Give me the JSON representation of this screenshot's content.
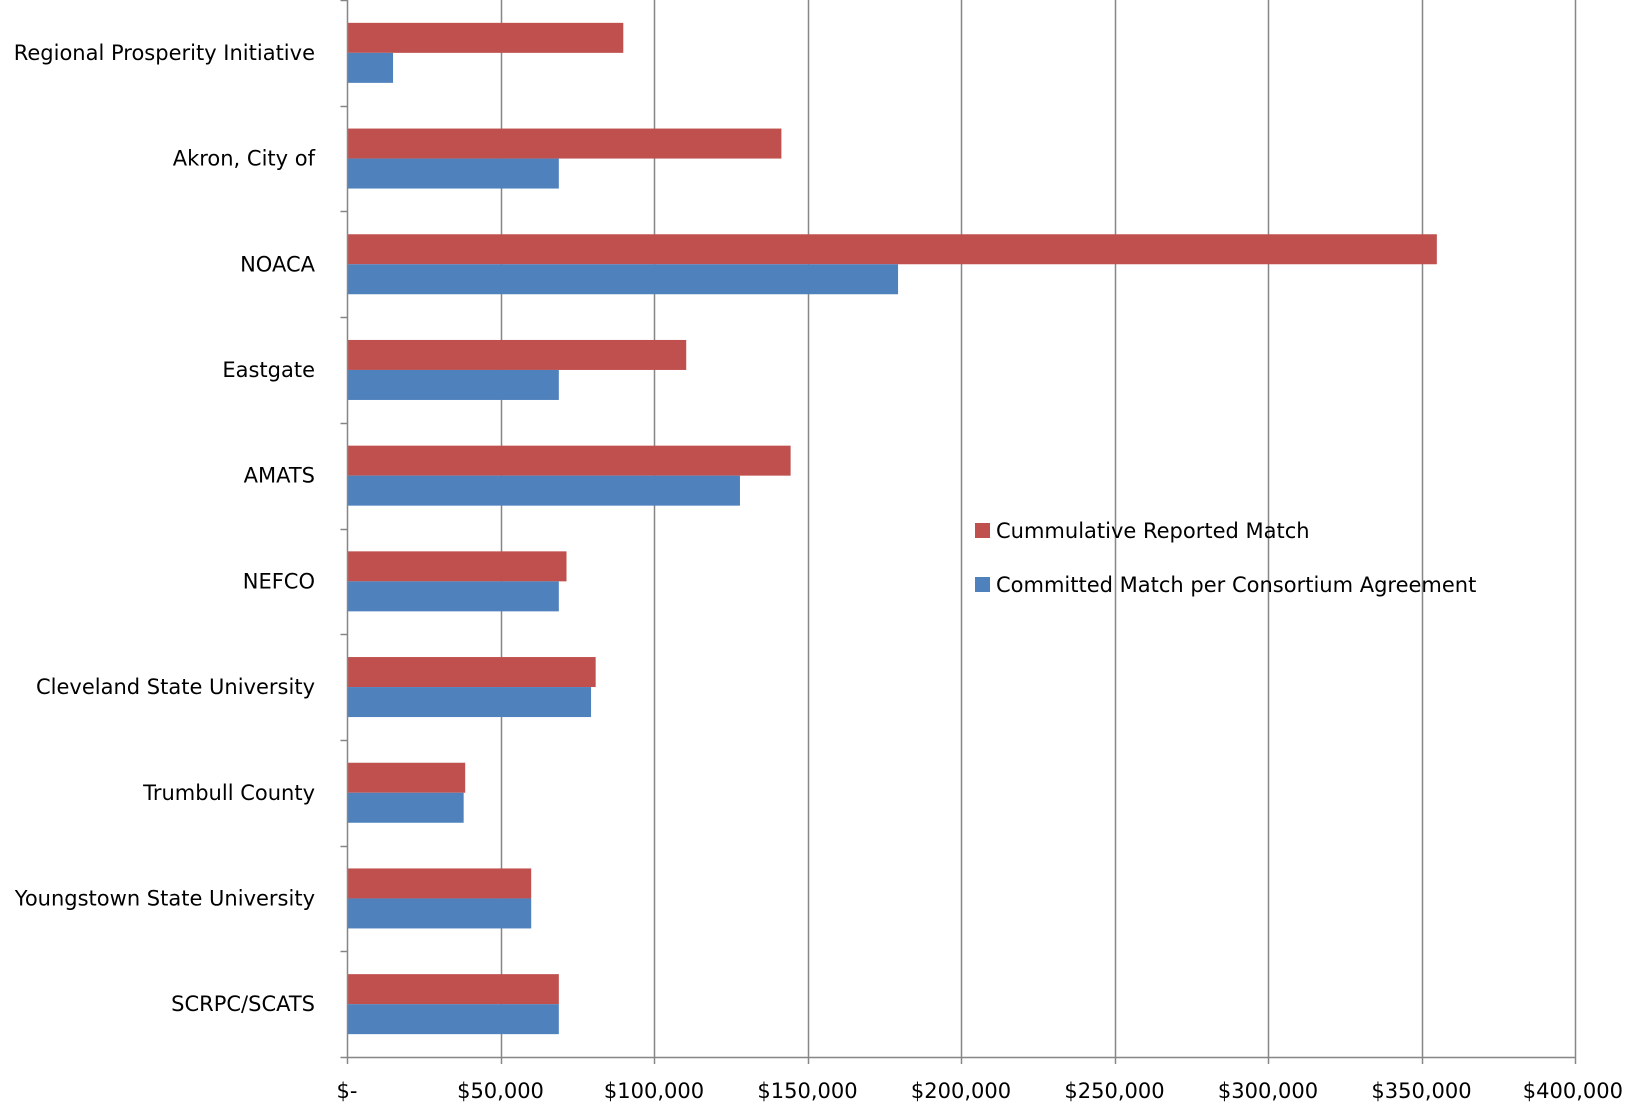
{
  "chart_data": {
    "type": "bar",
    "orientation": "horizontal",
    "categories": [
      "Regional Prosperity Initiative",
      "Akron, City of",
      "NOACA",
      "Eastgate",
      "AMATS",
      "NEFCO",
      "Cleveland State University",
      "Trumbull County",
      "Youngstown State University",
      "SCRPC/SCATS"
    ],
    "series": [
      {
        "name": "Cummulative Reported Match",
        "color": "#C0504D",
        "values": [
          90000,
          141500,
          355000,
          110500,
          144500,
          71500,
          81000,
          38500,
          60000,
          69000
        ]
      },
      {
        "name": "Committed Match per Consortium Agreement",
        "color": "#4F81BD",
        "values": [
          15000,
          69000,
          179500,
          69000,
          128000,
          69000,
          79500,
          38000,
          60000,
          69000
        ]
      }
    ],
    "xlim": [
      0,
      400000
    ],
    "x_ticks": [
      {
        "value": 0,
        "label": "$-"
      },
      {
        "value": 50000,
        "label": "$50,000"
      },
      {
        "value": 100000,
        "label": "$100,000"
      },
      {
        "value": 150000,
        "label": "$150,000"
      },
      {
        "value": 200000,
        "label": "$200,000"
      },
      {
        "value": 250000,
        "label": "$250,000"
      },
      {
        "value": 300000,
        "label": "$300,000"
      },
      {
        "value": 350000,
        "label": "$350,000"
      },
      {
        "value": 400000,
        "label": "$400,000"
      }
    ],
    "title": "",
    "xlabel": "",
    "ylabel": "",
    "grid": "vertical",
    "legend_position": "right-center",
    "gridline_color": "#868686",
    "axis_color": "#868686"
  }
}
